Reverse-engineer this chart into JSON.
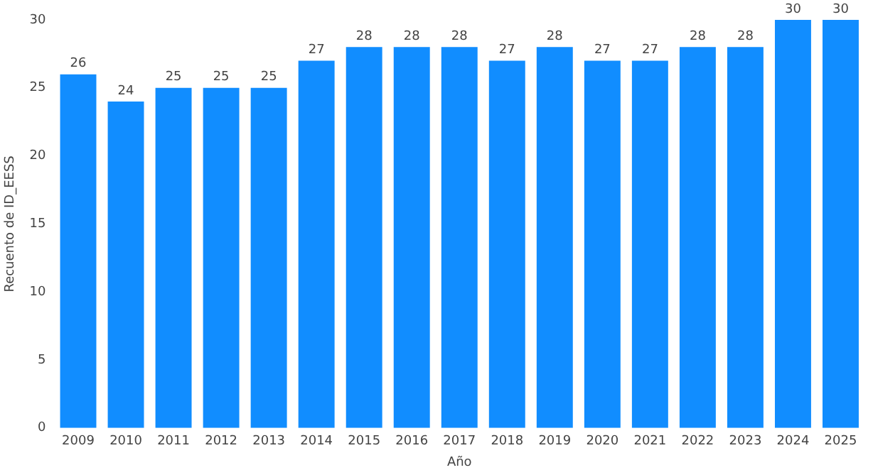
{
  "chart_data": {
    "type": "bar",
    "xlabel": "Año",
    "ylabel": "Recuento de ID_EESS",
    "categories": [
      "2009",
      "2010",
      "2011",
      "2012",
      "2013",
      "2014",
      "2015",
      "2016",
      "2017",
      "2018",
      "2019",
      "2020",
      "2021",
      "2022",
      "2023",
      "2024",
      "2025"
    ],
    "values": [
      26,
      24,
      25,
      25,
      25,
      27,
      28,
      28,
      28,
      27,
      28,
      27,
      27,
      28,
      28,
      30,
      30
    ],
    "color": "#118dff",
    "ylim": [
      0,
      30
    ],
    "yticks": [
      0,
      5,
      10,
      15,
      20,
      25,
      30
    ],
    "grid": false,
    "data_labels": true,
    "legend": false
  }
}
